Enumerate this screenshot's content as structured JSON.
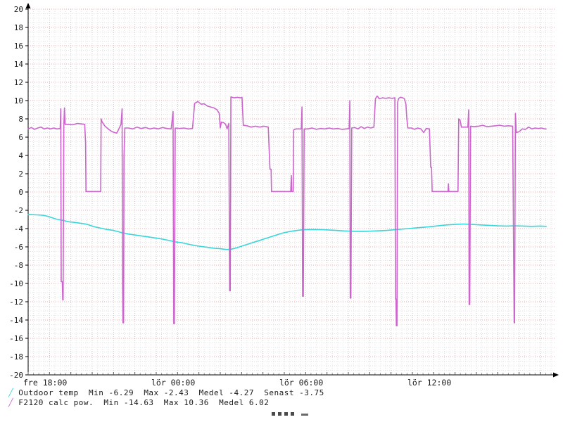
{
  "colors": {
    "background": "#ffffff",
    "axis": "#000000",
    "tick_text": "#1a1a1a",
    "grid_minor": "#e2e2e2",
    "grid_hour": "#c6c6c6",
    "grid_major_h": "#f0a8a8",
    "outdoor_temp": "#38d6da",
    "calc_pow": "#cc66cc"
  },
  "legend": [
    {
      "marker": "╱",
      "color": "#38d6da",
      "text": "Outdoor temp  Min -6.29  Max -2.43  Medel -4.27  Senast -3.75"
    },
    {
      "marker": "╱",
      "color": "#cc66cc",
      "text": "F2120 calc pow.  Min -14.63  Max 10.36  Medel 6.02"
    }
  ],
  "chart_data": {
    "type": "line",
    "title": "",
    "xlabel": "",
    "ylabel": "",
    "grid": true,
    "legend_position": "bottom-left",
    "y_axis": {
      "min": -20,
      "max": 20,
      "tick_step": 2,
      "minor_step": 0.5
    },
    "x_axis": {
      "unit": "hours-from-start",
      "range": [
        0,
        24.7
      ],
      "minor_step": 0.25,
      "hour_step": 1,
      "ticks": [
        {
          "hour": 0,
          "label": "fre 18:00"
        },
        {
          "hour": 6,
          "label": "lör 00:00"
        },
        {
          "hour": 12,
          "label": "lör 06:00"
        },
        {
          "hour": 18,
          "label": "lör 12:00"
        }
      ]
    },
    "series": [
      {
        "name": "Outdoor temp",
        "color": "#38d6da",
        "stats": {
          "Min": -6.29,
          "Max": -2.43,
          "Medel": -4.27,
          "Senast": -3.75
        },
        "points": [
          [
            0,
            -2.45
          ],
          [
            0.4,
            -2.5
          ],
          [
            0.7,
            -2.55
          ],
          [
            0.9,
            -2.65
          ],
          [
            1.1,
            -2.8
          ],
          [
            1.3,
            -2.95
          ],
          [
            1.5,
            -3.05
          ],
          [
            1.7,
            -3.15
          ],
          [
            1.9,
            -3.25
          ],
          [
            2.1,
            -3.3
          ],
          [
            2.4,
            -3.4
          ],
          [
            2.7,
            -3.5
          ],
          [
            2.9,
            -3.65
          ],
          [
            3.1,
            -3.8
          ],
          [
            3.4,
            -3.95
          ],
          [
            3.7,
            -4.1
          ],
          [
            4.0,
            -4.2
          ],
          [
            4.4,
            -4.45
          ],
          [
            4.7,
            -4.6
          ],
          [
            5.0,
            -4.7
          ],
          [
            5.3,
            -4.8
          ],
          [
            5.6,
            -4.9
          ],
          [
            6.0,
            -5.05
          ],
          [
            6.3,
            -5.15
          ],
          [
            6.6,
            -5.3
          ],
          [
            6.9,
            -5.45
          ],
          [
            7.2,
            -5.55
          ],
          [
            7.5,
            -5.7
          ],
          [
            7.8,
            -5.85
          ],
          [
            8.1,
            -5.95
          ],
          [
            8.4,
            -6.05
          ],
          [
            8.7,
            -6.15
          ],
          [
            9.0,
            -6.2
          ],
          [
            9.3,
            -6.29
          ],
          [
            9.5,
            -6.25
          ],
          [
            9.7,
            -6.15
          ],
          [
            9.9,
            -6.0
          ],
          [
            10.1,
            -5.85
          ],
          [
            10.3,
            -5.7
          ],
          [
            10.5,
            -5.55
          ],
          [
            10.7,
            -5.4
          ],
          [
            10.9,
            -5.25
          ],
          [
            11.1,
            -5.1
          ],
          [
            11.3,
            -4.95
          ],
          [
            11.5,
            -4.8
          ],
          [
            11.7,
            -4.65
          ],
          [
            11.9,
            -4.5
          ],
          [
            12.1,
            -4.4
          ],
          [
            12.3,
            -4.3
          ],
          [
            12.6,
            -4.2
          ],
          [
            12.9,
            -4.12
          ],
          [
            13.3,
            -4.1
          ],
          [
            13.8,
            -4.12
          ],
          [
            14.3,
            -4.18
          ],
          [
            14.8,
            -4.25
          ],
          [
            15.3,
            -4.3
          ],
          [
            15.8,
            -4.3
          ],
          [
            16.3,
            -4.25
          ],
          [
            16.8,
            -4.2
          ],
          [
            17.3,
            -4.1
          ],
          [
            17.8,
            -4.0
          ],
          [
            18.3,
            -3.9
          ],
          [
            18.8,
            -3.8
          ],
          [
            19.2,
            -3.7
          ],
          [
            19.6,
            -3.6
          ],
          [
            20.0,
            -3.55
          ],
          [
            20.4,
            -3.5
          ],
          [
            20.8,
            -3.55
          ],
          [
            21.2,
            -3.6
          ],
          [
            21.6,
            -3.65
          ],
          [
            22.0,
            -3.7
          ],
          [
            22.4,
            -3.72
          ],
          [
            22.8,
            -3.7
          ],
          [
            23.2,
            -3.72
          ],
          [
            23.6,
            -3.75
          ],
          [
            24.0,
            -3.72
          ],
          [
            24.27,
            -3.75
          ]
        ]
      },
      {
        "name": "F2120 calc pow.",
        "color": "#cc66cc",
        "stats": {
          "Min": -14.63,
          "Max": 10.36,
          "Medel": 6.02
        },
        "points": [
          [
            0,
            6.9
          ],
          [
            0.15,
            7.05
          ],
          [
            0.3,
            6.85
          ],
          [
            0.45,
            7.0
          ],
          [
            0.6,
            7.1
          ],
          [
            0.75,
            6.9
          ],
          [
            0.9,
            7.0
          ],
          [
            1.05,
            6.9
          ],
          [
            1.2,
            7.0
          ],
          [
            1.35,
            6.9
          ],
          [
            1.5,
            6.95
          ],
          [
            1.53,
            9.1
          ],
          [
            1.55,
            -9.8
          ],
          [
            1.6,
            -9.8
          ],
          [
            1.62,
            -11.8
          ],
          [
            1.64,
            -11.8
          ],
          [
            1.67,
            7.3
          ],
          [
            1.7,
            9.2
          ],
          [
            1.73,
            7.4
          ],
          [
            1.9,
            7.4
          ],
          [
            2.1,
            7.35
          ],
          [
            2.3,
            7.5
          ],
          [
            2.5,
            7.45
          ],
          [
            2.65,
            7.4
          ],
          [
            2.69,
            5.4
          ],
          [
            2.71,
            0.05
          ],
          [
            3.4,
            0.05
          ],
          [
            3.42,
            8.0
          ],
          [
            3.46,
            7.7
          ],
          [
            3.6,
            7.2
          ],
          [
            3.75,
            6.9
          ],
          [
            3.9,
            6.65
          ],
          [
            4.05,
            6.5
          ],
          [
            4.15,
            6.45
          ],
          [
            4.25,
            6.9
          ],
          [
            4.35,
            7.4
          ],
          [
            4.4,
            9.1
          ],
          [
            4.42,
            -9.0
          ],
          [
            4.44,
            -14.3
          ],
          [
            4.47,
            -14.3
          ],
          [
            4.49,
            3.9
          ],
          [
            4.53,
            7.0
          ],
          [
            4.7,
            7.0
          ],
          [
            4.9,
            6.9
          ],
          [
            5.1,
            7.1
          ],
          [
            5.3,
            6.95
          ],
          [
            5.5,
            7.05
          ],
          [
            5.7,
            6.9
          ],
          [
            5.9,
            7.0
          ],
          [
            6.1,
            6.9
          ],
          [
            6.3,
            7.05
          ],
          [
            6.5,
            6.95
          ],
          [
            6.7,
            6.9
          ],
          [
            6.79,
            8.8
          ],
          [
            6.82,
            -14.4
          ],
          [
            6.85,
            -14.4
          ],
          [
            6.89,
            7.0
          ],
          [
            7.1,
            6.95
          ],
          [
            7.3,
            7.0
          ],
          [
            7.5,
            6.9
          ],
          [
            7.7,
            6.95
          ],
          [
            7.8,
            9.7
          ],
          [
            7.95,
            9.9
          ],
          [
            8.1,
            9.6
          ],
          [
            8.25,
            9.65
          ],
          [
            8.4,
            9.4
          ],
          [
            8.55,
            9.3
          ],
          [
            8.7,
            9.2
          ],
          [
            8.85,
            9.0
          ],
          [
            8.95,
            8.6
          ],
          [
            9.0,
            7.0
          ],
          [
            9.05,
            7.65
          ],
          [
            9.15,
            7.6
          ],
          [
            9.25,
            7.4
          ],
          [
            9.32,
            6.9
          ],
          [
            9.4,
            7.5
          ],
          [
            9.44,
            -10.8
          ],
          [
            9.47,
            -10.8
          ],
          [
            9.5,
            10.4
          ],
          [
            9.65,
            10.3
          ],
          [
            9.8,
            10.35
          ],
          [
            9.95,
            10.3
          ],
          [
            10.02,
            10.35
          ],
          [
            10.08,
            7.3
          ],
          [
            10.25,
            7.25
          ],
          [
            10.45,
            7.1
          ],
          [
            10.65,
            7.2
          ],
          [
            10.85,
            7.1
          ],
          [
            11.05,
            7.2
          ],
          [
            11.25,
            7.1
          ],
          [
            11.33,
            2.5
          ],
          [
            11.38,
            2.5
          ],
          [
            11.4,
            0.05
          ],
          [
            12.3,
            0.05
          ],
          [
            12.33,
            1.8
          ],
          [
            12.35,
            0.05
          ],
          [
            12.42,
            0.05
          ],
          [
            12.44,
            6.8
          ],
          [
            12.55,
            6.9
          ],
          [
            12.7,
            6.9
          ],
          [
            12.8,
            6.9
          ],
          [
            12.83,
            9.3
          ],
          [
            12.86,
            -11.4
          ],
          [
            12.89,
            -11.4
          ],
          [
            12.93,
            6.9
          ],
          [
            13.1,
            6.9
          ],
          [
            13.3,
            7.0
          ],
          [
            13.5,
            6.85
          ],
          [
            13.7,
            6.95
          ],
          [
            13.9,
            6.9
          ],
          [
            14.1,
            7.0
          ],
          [
            14.3,
            6.9
          ],
          [
            14.5,
            6.95
          ],
          [
            14.7,
            6.85
          ],
          [
            14.9,
            6.9
          ],
          [
            15.04,
            6.95
          ],
          [
            15.07,
            10.0
          ],
          [
            15.09,
            -11.6
          ],
          [
            15.12,
            -11.6
          ],
          [
            15.16,
            7.0
          ],
          [
            15.3,
            7.05
          ],
          [
            15.45,
            6.9
          ],
          [
            15.6,
            7.15
          ],
          [
            15.75,
            6.95
          ],
          [
            15.9,
            7.1
          ],
          [
            16.05,
            7.0
          ],
          [
            16.2,
            7.1
          ],
          [
            16.27,
            10.2
          ],
          [
            16.35,
            10.5
          ],
          [
            16.45,
            10.2
          ],
          [
            16.6,
            10.3
          ],
          [
            16.75,
            10.25
          ],
          [
            16.9,
            10.3
          ],
          [
            17.05,
            10.25
          ],
          [
            17.18,
            10.3
          ],
          [
            17.21,
            -11.7
          ],
          [
            17.23,
            -11.7
          ],
          [
            17.25,
            -14.63
          ],
          [
            17.28,
            -14.63
          ],
          [
            17.31,
            9.8
          ],
          [
            17.36,
            10.25
          ],
          [
            17.45,
            10.36
          ],
          [
            17.55,
            10.3
          ],
          [
            17.63,
            10.2
          ],
          [
            17.7,
            9.6
          ],
          [
            17.74,
            8.0
          ],
          [
            17.79,
            7.0
          ],
          [
            17.95,
            7.0
          ],
          [
            18.1,
            6.85
          ],
          [
            18.25,
            7.0
          ],
          [
            18.4,
            6.9
          ],
          [
            18.53,
            6.5
          ],
          [
            18.65,
            6.95
          ],
          [
            18.8,
            6.9
          ],
          [
            18.86,
            2.7
          ],
          [
            18.9,
            2.7
          ],
          [
            18.93,
            0.05
          ],
          [
            19.67,
            0.05
          ],
          [
            19.69,
            0.9
          ],
          [
            19.71,
            0.05
          ],
          [
            20.14,
            0.05
          ],
          [
            20.17,
            8.0
          ],
          [
            20.23,
            7.9
          ],
          [
            20.3,
            7.1
          ],
          [
            20.45,
            7.1
          ],
          [
            20.6,
            7.1
          ],
          [
            20.64,
            9.0
          ],
          [
            20.66,
            -12.3
          ],
          [
            20.69,
            -12.3
          ],
          [
            20.73,
            7.2
          ],
          [
            20.9,
            7.15
          ],
          [
            21.1,
            7.2
          ],
          [
            21.3,
            7.3
          ],
          [
            21.5,
            7.15
          ],
          [
            21.7,
            7.2
          ],
          [
            21.9,
            7.25
          ],
          [
            22.1,
            7.3
          ],
          [
            22.3,
            7.2
          ],
          [
            22.5,
            7.25
          ],
          [
            22.7,
            7.2
          ],
          [
            22.77,
            -14.3
          ],
          [
            22.79,
            -14.3
          ],
          [
            22.83,
            8.6
          ],
          [
            22.87,
            6.5
          ],
          [
            23.0,
            6.6
          ],
          [
            23.15,
            6.9
          ],
          [
            23.3,
            6.85
          ],
          [
            23.45,
            7.1
          ],
          [
            23.6,
            6.9
          ],
          [
            23.75,
            7.0
          ],
          [
            23.9,
            6.95
          ],
          [
            24.05,
            7.0
          ],
          [
            24.2,
            6.9
          ],
          [
            24.27,
            6.9
          ]
        ]
      }
    ]
  }
}
